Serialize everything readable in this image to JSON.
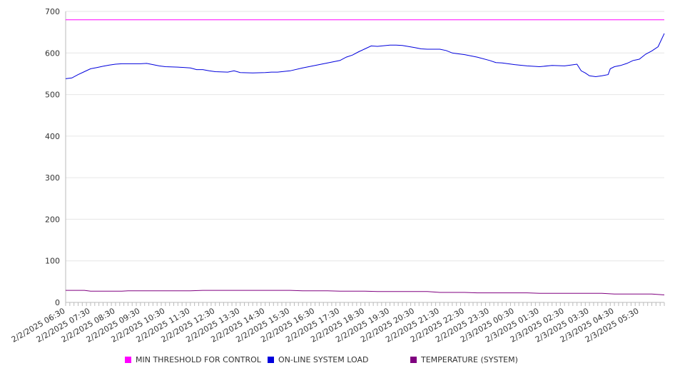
{
  "chart_data": {
    "type": "line",
    "title": "",
    "xlabel": "",
    "ylabel": "",
    "ylim": [
      0,
      700
    ],
    "y_ticks": [
      0,
      100,
      200,
      300,
      400,
      500,
      600,
      700
    ],
    "x_tick_labels": [
      "2/2/2025 06:30",
      "2/2/2025 07:30",
      "2/2/2025 08:30",
      "2/2/2025 09:30",
      "2/2/2025 10:30",
      "2/2/2025 11:30",
      "2/2/2025 12:30",
      "2/2/2025 13:30",
      "2/2/2025 14:30",
      "2/2/2025 15:30",
      "2/2/2025 16:30",
      "2/2/2025 17:30",
      "2/2/2025 18:30",
      "2/2/2025 19:30",
      "2/2/2025 20:30",
      "2/2/2025 21:30",
      "2/2/2025 22:30",
      "2/2/2025 23:30",
      "2/3/2025 00:30",
      "2/3/2025 01:30",
      "2/3/2025 02:30",
      "2/3/2025 03:30",
      "2/3/2025 04:30",
      "2/3/2025 05:30"
    ],
    "x_range": [
      "2/2/2025 06:30",
      "2/3/2025 06:30"
    ],
    "grid": true,
    "legend_position": "bottom",
    "series": [
      {
        "name": "MIN THRESHOLD FOR CONTROL",
        "color": "#ff00ff",
        "points": [
          [
            "2/2/2025 06:30",
            680
          ],
          [
            "2/3/2025 06:30",
            680
          ]
        ]
      },
      {
        "name": "ON-LINE SYSTEM LOAD",
        "color": "#0000dd",
        "points": [
          [
            "2/2/2025 06:30",
            538
          ],
          [
            "2/2/2025 06:45",
            540
          ],
          [
            "2/2/2025 07:00",
            548
          ],
          [
            "2/2/2025 07:15",
            555
          ],
          [
            "2/2/2025 07:30",
            562
          ],
          [
            "2/2/2025 07:45",
            565
          ],
          [
            "2/2/2025 08:00",
            568
          ],
          [
            "2/2/2025 08:15",
            571
          ],
          [
            "2/2/2025 08:30",
            573
          ],
          [
            "2/2/2025 08:45",
            574
          ],
          [
            "2/2/2025 09:00",
            574
          ],
          [
            "2/2/2025 09:30",
            574
          ],
          [
            "2/2/2025 09:45",
            575
          ],
          [
            "2/2/2025 10:00",
            572
          ],
          [
            "2/2/2025 10:15",
            569
          ],
          [
            "2/2/2025 10:30",
            567
          ],
          [
            "2/2/2025 11:00",
            566
          ],
          [
            "2/2/2025 11:30",
            564
          ],
          [
            "2/2/2025 11:45",
            560
          ],
          [
            "2/2/2025 12:00",
            560
          ],
          [
            "2/2/2025 12:15",
            557
          ],
          [
            "2/2/2025 12:30",
            555
          ],
          [
            "2/2/2025 13:00",
            554
          ],
          [
            "2/2/2025 13:15",
            557
          ],
          [
            "2/2/2025 13:30",
            553
          ],
          [
            "2/2/2025 14:00",
            552
          ],
          [
            "2/2/2025 14:30",
            553
          ],
          [
            "2/2/2025 14:45",
            554
          ],
          [
            "2/2/2025 15:00",
            554
          ],
          [
            "2/2/2025 15:30",
            557
          ],
          [
            "2/2/2025 16:00",
            564
          ],
          [
            "2/2/2025 16:30",
            570
          ],
          [
            "2/2/2025 17:00",
            576
          ],
          [
            "2/2/2025 17:30",
            582
          ],
          [
            "2/2/2025 17:45",
            590
          ],
          [
            "2/2/2025 18:00",
            595
          ],
          [
            "2/2/2025 18:15",
            603
          ],
          [
            "2/2/2025 18:30",
            610
          ],
          [
            "2/2/2025 18:45",
            617
          ],
          [
            "2/2/2025 19:00",
            616
          ],
          [
            "2/2/2025 19:30",
            619
          ],
          [
            "2/2/2025 19:45",
            619
          ],
          [
            "2/2/2025 20:00",
            618
          ],
          [
            "2/2/2025 20:30",
            613
          ],
          [
            "2/2/2025 20:45",
            610
          ],
          [
            "2/2/2025 21:00",
            609
          ],
          [
            "2/2/2025 21:30",
            609
          ],
          [
            "2/2/2025 21:45",
            606
          ],
          [
            "2/2/2025 22:00",
            600
          ],
          [
            "2/2/2025 22:30",
            596
          ],
          [
            "2/2/2025 23:00",
            590
          ],
          [
            "2/2/2025 23:30",
            582
          ],
          [
            "2/2/2025 23:45",
            577
          ],
          [
            "2/3/2025 00:00",
            576
          ],
          [
            "2/3/2025 00:30",
            572
          ],
          [
            "2/3/2025 01:00",
            569
          ],
          [
            "2/3/2025 01:30",
            567
          ],
          [
            "2/3/2025 02:00",
            570
          ],
          [
            "2/3/2025 02:30",
            569
          ],
          [
            "2/3/2025 02:45",
            571
          ],
          [
            "2/3/2025 03:00",
            573
          ],
          [
            "2/3/2025 03:10",
            557
          ],
          [
            "2/3/2025 03:20",
            552
          ],
          [
            "2/3/2025 03:30",
            545
          ],
          [
            "2/3/2025 03:45",
            543
          ],
          [
            "2/3/2025 04:00",
            545
          ],
          [
            "2/3/2025 04:15",
            548
          ],
          [
            "2/3/2025 04:20",
            562
          ],
          [
            "2/3/2025 04:30",
            567
          ],
          [
            "2/3/2025 04:45",
            570
          ],
          [
            "2/3/2025 05:00",
            575
          ],
          [
            "2/3/2025 05:15",
            582
          ],
          [
            "2/3/2025 05:30",
            585
          ],
          [
            "2/3/2025 05:45",
            597
          ],
          [
            "2/3/2025 06:00",
            605
          ],
          [
            "2/3/2025 06:15",
            615
          ],
          [
            "2/3/2025 06:30",
            647
          ]
        ]
      },
      {
        "name": "TEMPERATURE (SYSTEM)",
        "color": "#800080",
        "points": [
          [
            "2/2/2025 06:30",
            29
          ],
          [
            "2/2/2025 07:15",
            29
          ],
          [
            "2/2/2025 07:30",
            27
          ],
          [
            "2/2/2025 08:45",
            27
          ],
          [
            "2/2/2025 09:00",
            28
          ],
          [
            "2/2/2025 11:30",
            28
          ],
          [
            "2/2/2025 12:00",
            29
          ],
          [
            "2/2/2025 15:00",
            29
          ],
          [
            "2/2/2025 15:30",
            29
          ],
          [
            "2/2/2025 16:00",
            28
          ],
          [
            "2/2/2025 17:00",
            28
          ],
          [
            "2/2/2025 17:30",
            27
          ],
          [
            "2/2/2025 18:30",
            27
          ],
          [
            "2/2/2025 19:00",
            26
          ],
          [
            "2/2/2025 21:00",
            26
          ],
          [
            "2/2/2025 21:30",
            24
          ],
          [
            "2/2/2025 22:30",
            24
          ],
          [
            "2/2/2025 23:00",
            23
          ],
          [
            "2/3/2025 01:00",
            23
          ],
          [
            "2/3/2025 01:30",
            22
          ],
          [
            "2/3/2025 04:00",
            22
          ],
          [
            "2/3/2025 04:30",
            20
          ],
          [
            "2/3/2025 06:00",
            20
          ],
          [
            "2/3/2025 06:30",
            18
          ]
        ]
      }
    ]
  }
}
